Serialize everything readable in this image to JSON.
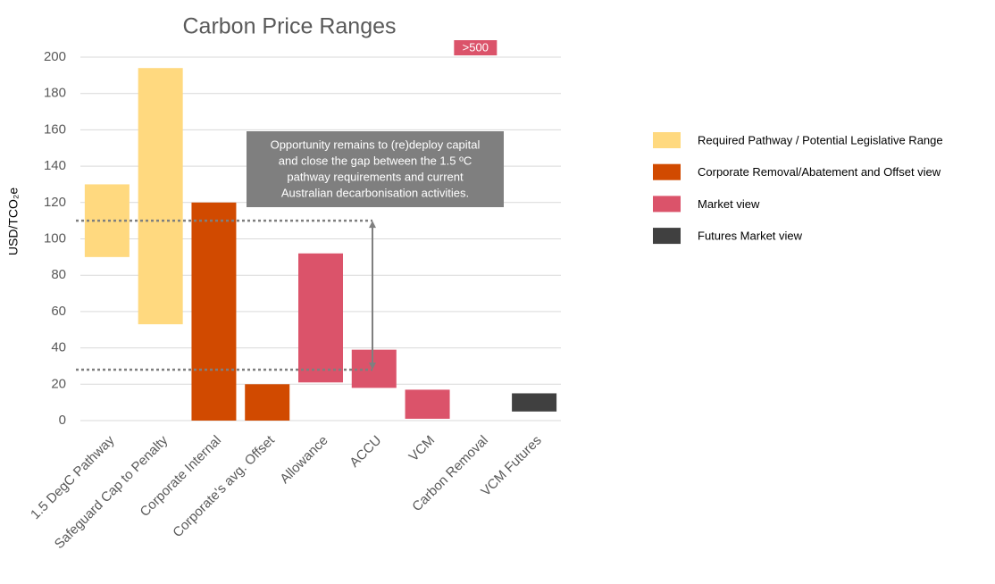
{
  "chart_data": {
    "type": "range_bar",
    "title": "Carbon Price Ranges",
    "y_label": "USD/TCO₂e",
    "categories": [
      "1.5 DegC Pathway",
      "Safeguard Cap to Penalty",
      "Corporate Internal",
      "Corporate's avg. Offset",
      "Allowance",
      "ACCU",
      "VCM",
      "Carbon Removal",
      "VCM Futures"
    ],
    "series": [
      {
        "name": "Required Pathway / Potential Legislative Range",
        "color": "#ffd97f",
        "low": [
          90,
          53,
          null,
          null,
          null,
          null,
          null,
          null,
          null
        ],
        "high": [
          130,
          194,
          null,
          null,
          null,
          null,
          null,
          null,
          null
        ]
      },
      {
        "name": "Corporate Removal/Abatement and Offset view",
        "color": "#d14a00",
        "low": [
          null,
          null,
          0,
          0,
          null,
          null,
          null,
          null,
          null
        ],
        "high": [
          null,
          null,
          120,
          20,
          null,
          null,
          null,
          null,
          null
        ]
      },
      {
        "name": "Market view",
        "color": "#db536a",
        "low": [
          null,
          null,
          null,
          null,
          21,
          18,
          1,
          500,
          null
        ],
        "high": [
          null,
          null,
          null,
          null,
          92,
          39,
          17,
          null,
          null
        ],
        "value_labels": [
          null,
          null,
          null,
          null,
          null,
          null,
          null,
          ">500",
          null
        ]
      },
      {
        "name": "Futures Market view",
        "color": "#404040",
        "low": [
          null,
          null,
          null,
          null,
          null,
          null,
          null,
          null,
          5
        ],
        "high": [
          null,
          null,
          null,
          null,
          null,
          null,
          null,
          null,
          15
        ]
      }
    ],
    "ylim": [
      0,
      200
    ],
    "yticks": [
      0,
      20,
      40,
      60,
      80,
      100,
      120,
      140,
      160,
      180,
      200
    ],
    "grid": true,
    "reference_lines": [
      110,
      28
    ],
    "annotation": [
      "Opportunity remains to (re)deploy capital",
      "and close the gap between the 1.5 ºC",
      "pathway requirements and current",
      "Australian decarbonisation activities."
    ],
    "legend": "right"
  }
}
